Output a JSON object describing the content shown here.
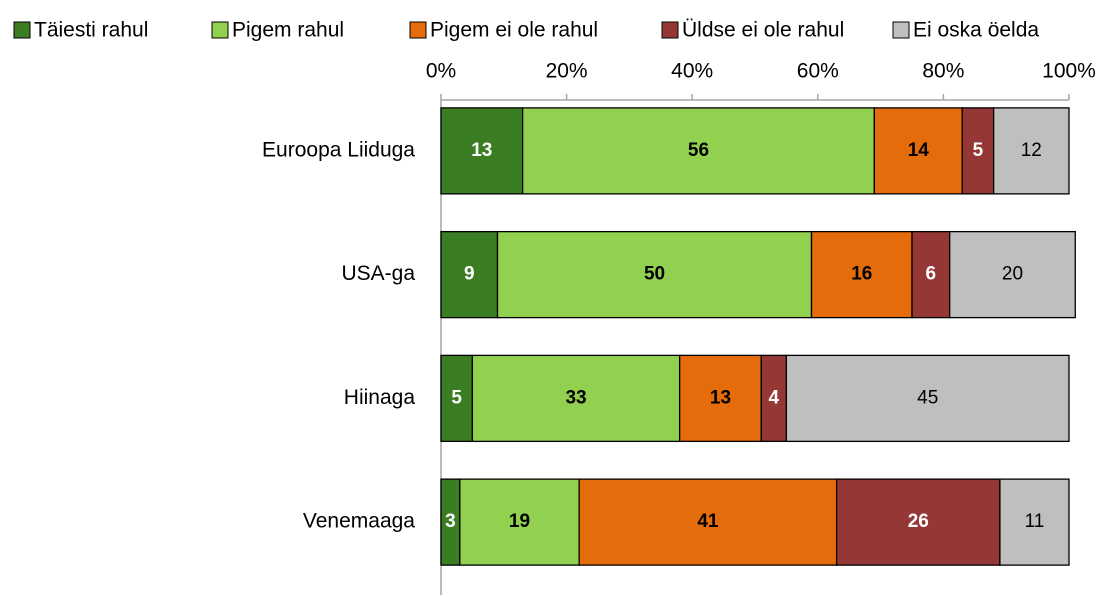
{
  "chart_data": {
    "type": "stacked_barh",
    "categories": [
      "Euroopa Liiduga",
      "USA-ga",
      "Hiinaga",
      "Venemaaga"
    ],
    "series": [
      {
        "name": "Täiesti rahul",
        "color": "#3a7d22",
        "label_color": "#ffffff",
        "values": [
          13,
          9,
          5,
          3
        ]
      },
      {
        "name": "Pigem rahul",
        "color": "#92d050",
        "label_color": "#000000",
        "values": [
          56,
          50,
          33,
          19
        ]
      },
      {
        "name": "Pigem ei ole rahul",
        "color": "#e46c0a",
        "label_color": "#000000",
        "values": [
          14,
          16,
          13,
          41
        ]
      },
      {
        "name": "Üldse ei ole rahul",
        "color": "#953735",
        "label_color": "#ffffff",
        "values": [
          5,
          6,
          4,
          26
        ]
      },
      {
        "name": "Ei oska öelda",
        "color": "#bfbfbf",
        "label_color": "#000000",
        "values": [
          12,
          20,
          45,
          11
        ]
      }
    ],
    "xlim": [
      0,
      100
    ],
    "xticks": [
      {
        "value": 0,
        "label": "0%"
      },
      {
        "value": 20,
        "label": "20%"
      },
      {
        "value": 40,
        "label": "40%"
      },
      {
        "value": 60,
        "label": "60%"
      },
      {
        "value": 80,
        "label": "80%"
      },
      {
        "value": 100,
        "label": "100%"
      }
    ],
    "legend": "top"
  }
}
